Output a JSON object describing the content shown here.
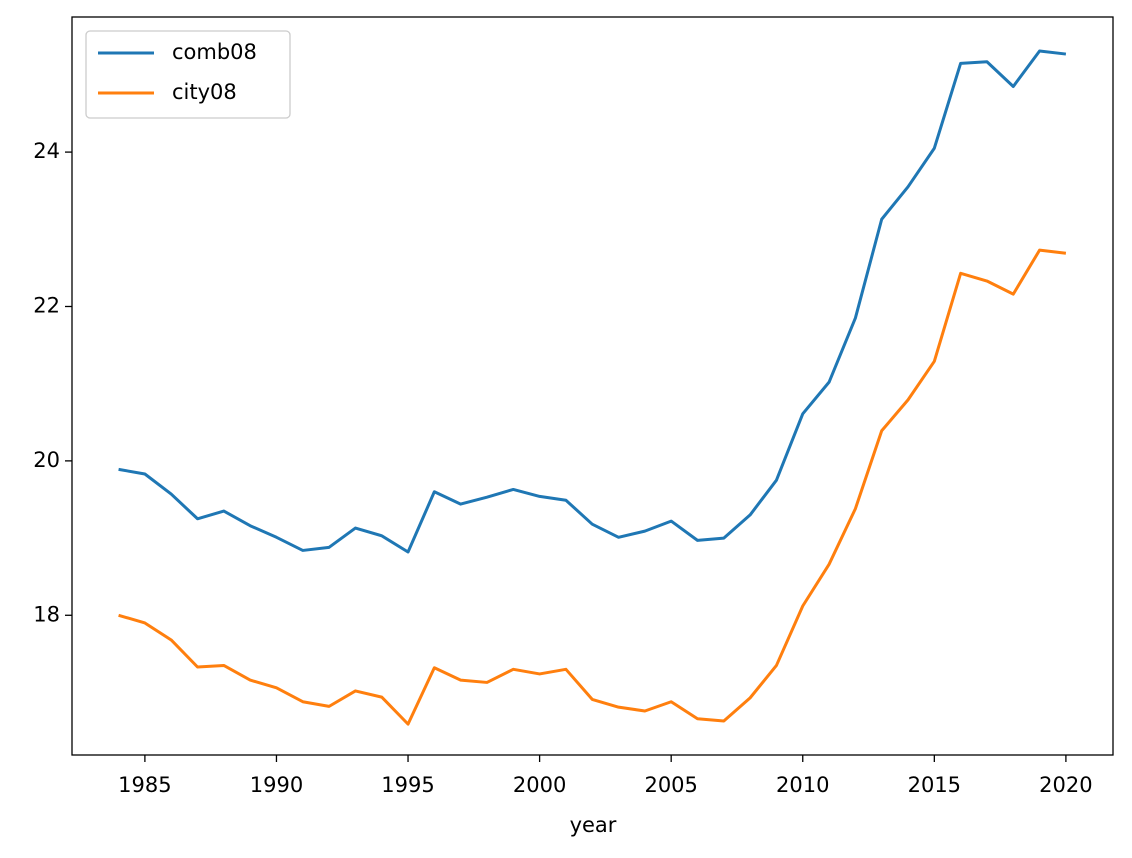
{
  "chart_data": {
    "type": "line",
    "xlabel": "year",
    "x": [
      1984,
      1985,
      1986,
      1987,
      1988,
      1989,
      1990,
      1991,
      1992,
      1993,
      1994,
      1995,
      1996,
      1997,
      1998,
      1999,
      2000,
      2001,
      2002,
      2003,
      2004,
      2005,
      2006,
      2007,
      2008,
      2009,
      2010,
      2011,
      2012,
      2013,
      2014,
      2015,
      2016,
      2017,
      2018,
      2019,
      2020
    ],
    "series": [
      {
        "name": "comb08",
        "color": "#1f77b4",
        "values": [
          19.89,
          19.83,
          19.57,
          19.25,
          19.35,
          19.16,
          19.01,
          18.84,
          18.88,
          19.13,
          19.03,
          18.82,
          19.6,
          19.44,
          19.53,
          19.63,
          19.54,
          19.49,
          19.18,
          19.01,
          19.09,
          19.22,
          18.97,
          19.0,
          19.3,
          19.75,
          20.61,
          21.02,
          21.85,
          23.13,
          23.55,
          24.05,
          25.15,
          25.17,
          24.85,
          25.31,
          25.27
        ]
      },
      {
        "name": "city08",
        "color": "#ff7f0e",
        "values": [
          18.0,
          17.9,
          17.68,
          17.33,
          17.35,
          17.16,
          17.06,
          16.88,
          16.82,
          17.02,
          16.94,
          16.59,
          17.32,
          17.16,
          17.13,
          17.3,
          17.24,
          17.3,
          16.91,
          16.81,
          16.76,
          16.88,
          16.66,
          16.63,
          16.93,
          17.35,
          18.12,
          18.66,
          19.38,
          20.39,
          20.79,
          21.29,
          22.43,
          22.33,
          22.16,
          22.73,
          22.69
        ]
      }
    ],
    "xlim": [
      1982.23,
      2021.79
    ],
    "ylim": [
      16.19,
      25.75
    ],
    "xticks": [
      1985,
      1990,
      1995,
      2000,
      2005,
      2010,
      2015,
      2020
    ],
    "yticks": [
      18,
      20,
      22,
      24
    ],
    "legend": "upper-left"
  }
}
